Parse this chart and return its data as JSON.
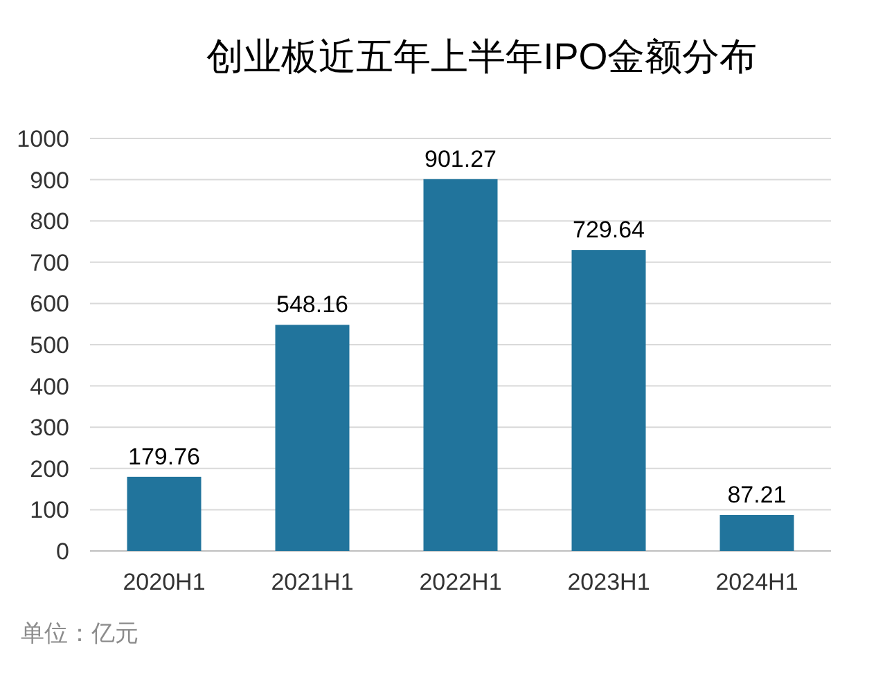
{
  "chart_data": {
    "type": "bar",
    "title": "创业板近五年上半年IPO金额分布",
    "categories": [
      "2020H1",
      "2021H1",
      "2022H1",
      "2023H1",
      "2024H1"
    ],
    "values": [
      179.76,
      548.16,
      901.27,
      729.64,
      87.21
    ],
    "color": "#21749c",
    "ylim": [
      0,
      1000
    ],
    "yticks": [
      0,
      100,
      200,
      300,
      400,
      500,
      600,
      700,
      800,
      900,
      1000
    ],
    "grid": "y",
    "data_labels": true,
    "annotations": [
      "单位：亿元"
    ]
  }
}
